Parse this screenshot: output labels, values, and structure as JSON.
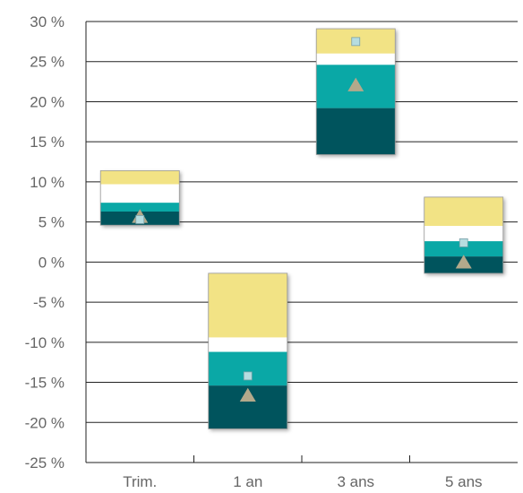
{
  "chart_data": {
    "type": "bar",
    "subtype": "floating-stacked-range",
    "categories": [
      "Trim.",
      "1 an",
      "3 ans",
      "5 ans"
    ],
    "yticks": [
      "30 %",
      "25 %",
      "20 %",
      "15 %",
      "10 %",
      "5 %",
      "0 %",
      "-5 %",
      "-10 %",
      "-15 %",
      "-20 %",
      "-25 %"
    ],
    "ylim": [
      -25,
      30
    ],
    "ytick_values": [
      30,
      25,
      20,
      15,
      10,
      5,
      0,
      -5,
      -10,
      -15,
      -20,
      -25
    ],
    "grid": true,
    "bands": [
      {
        "Trim.": [
          11.4,
          9.7
        ],
        "1 an": [
          -1.4,
          -9.4
        ],
        "3 ans": [
          29.1,
          26.0
        ],
        "5 ans": [
          8.1,
          4.5
        ]
      },
      {
        "Trim.": [
          9.7,
          7.4
        ],
        "1 an": [
          -9.4,
          -11.2
        ],
        "3 ans": [
          26.0,
          24.6
        ],
        "5 ans": [
          4.5,
          2.6
        ]
      },
      {
        "Trim.": [
          7.4,
          6.3
        ],
        "1 an": [
          -11.2,
          -15.4
        ],
        "3 ans": [
          24.6,
          19.2
        ],
        "5 ans": [
          2.6,
          0.7
        ]
      },
      {
        "Trim.": [
          6.3,
          4.6
        ],
        "1 an": [
          -15.4,
          -20.8
        ],
        "3 ans": [
          19.2,
          13.4
        ],
        "5 ans": [
          0.7,
          -1.4
        ]
      }
    ],
    "square_marker": {
      "Trim.": 5.3,
      "1 an": -14.2,
      "3 ans": 27.5,
      "5 ans": 2.4
    },
    "triangle_marker": {
      "Trim.": 5.6,
      "1 an": -16.7,
      "3 ans": 22.0,
      "5 ans": -0.1
    },
    "colors": {
      "band_1": "#f2e385",
      "band_2": "#ffffff",
      "band_3": "#0aa8a6",
      "band_4": "#00545d",
      "square": "#b6dde0",
      "triangle": "#b3a98b",
      "grid": "#222222",
      "text": "#666666"
    }
  }
}
